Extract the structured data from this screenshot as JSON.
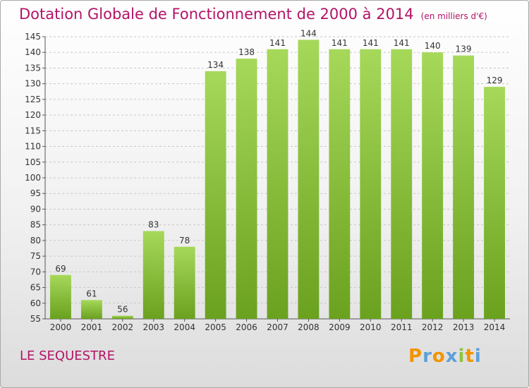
{
  "title": "Dotation Globale de Fonctionnement de 2000 à 2014",
  "title_unit": "(en milliers d'€)",
  "commune": "LE SEQUESTRE",
  "logo": {
    "letters": [
      "P",
      "r",
      "o",
      "x",
      "i",
      "t",
      "i"
    ],
    "colors": [
      "#f29400",
      "#5da0d9",
      "#f29400",
      "#5da0d9",
      "#8cc63f",
      "#f29400",
      "#5da0d9"
    ]
  },
  "colors": {
    "bar_top": "#a6d85a",
    "bar_bottom": "#6aa11e",
    "title": "#b31366",
    "grid": "#c8c8c8"
  },
  "chart_data": {
    "type": "bar",
    "title": "Dotation Globale de Fonctionnement de 2000 à 2014",
    "categories": [
      "2000",
      "2001",
      "2002",
      "2003",
      "2004",
      "2005",
      "2006",
      "2007",
      "2008",
      "2009",
      "2010",
      "2011",
      "2012",
      "2013",
      "2014"
    ],
    "values": [
      69,
      61,
      56,
      83,
      78,
      134,
      138,
      141,
      144,
      141,
      141,
      141,
      140,
      139,
      129
    ],
    "ylim": [
      55,
      145
    ],
    "yticks": [
      55,
      60,
      65,
      70,
      75,
      80,
      85,
      90,
      95,
      100,
      105,
      110,
      115,
      120,
      125,
      130,
      135,
      140,
      145
    ],
    "grid": "horizontal dashed",
    "data_labels": true
  }
}
